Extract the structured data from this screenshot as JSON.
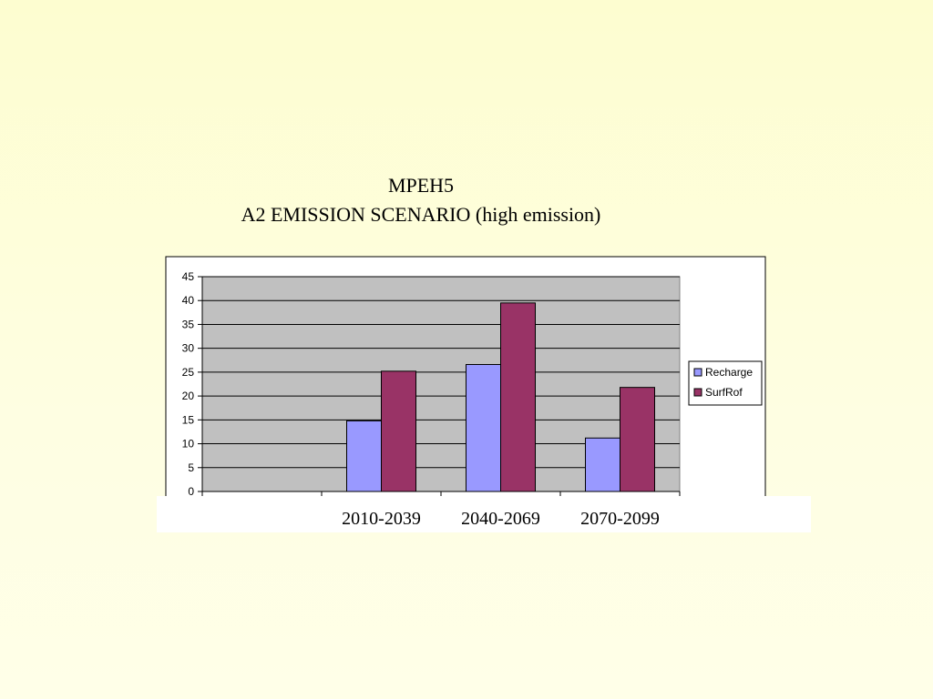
{
  "chart_data": {
    "type": "bar",
    "title": "MPEH5",
    "subtitle": "A2 EMISSION SCENARIO (high emission)",
    "categories": [
      "",
      "2010-2039",
      "2040-2069",
      "2070-2099"
    ],
    "series": [
      {
        "name": "Recharge",
        "values": [
          null,
          14.8,
          26.6,
          11.2
        ],
        "color": "#9999ff"
      },
      {
        "name": "SurfRof",
        "values": [
          null,
          25.2,
          39.5,
          21.8
        ],
        "color": "#993366"
      }
    ],
    "ylim": [
      0,
      45
    ],
    "yticks": [
      0,
      5,
      10,
      15,
      20,
      25,
      30,
      35,
      40,
      45
    ],
    "grid": true,
    "legend": "right",
    "plot_background": "#c0c0c0"
  }
}
